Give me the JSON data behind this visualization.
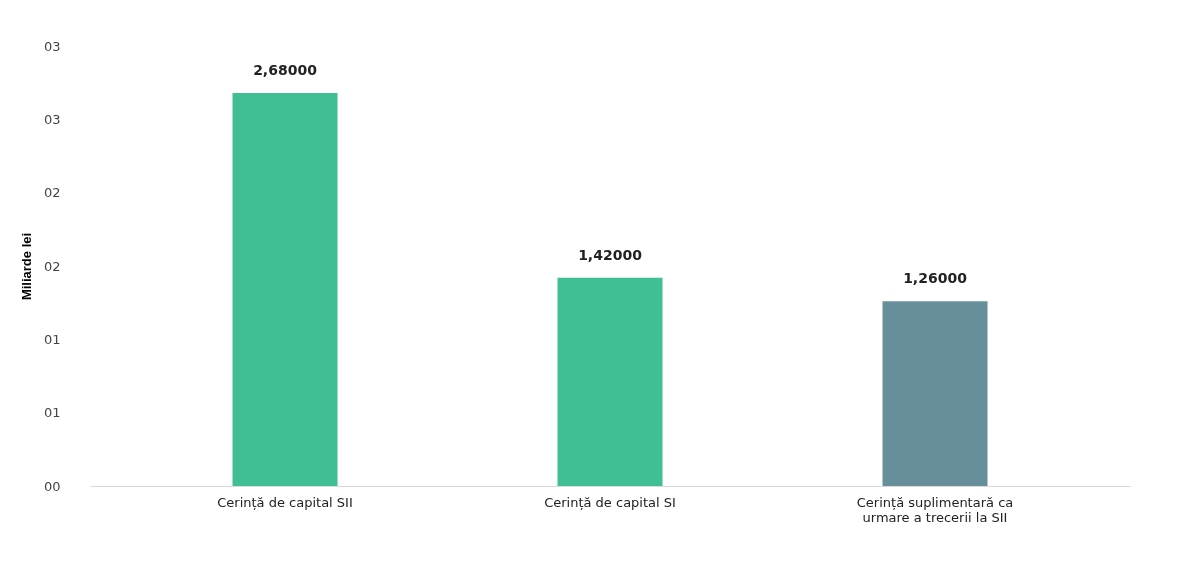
{
  "chart_data": {
    "type": "bar",
    "ylabel": "Miliarde lei",
    "categories": [
      "Cerință de capital  SII",
      "Cerință de capital  SI",
      "Cerință suplimentară  ca urmare a trecerii la SII"
    ],
    "values": [
      2.68,
      1.42,
      1.26
    ],
    "colors": [
      "#40bf95",
      "#40bf95",
      "#668f9b"
    ],
    "value_labels": [
      "2,68000",
      "1,42000",
      "1,26000"
    ],
    "ylim": [
      0,
      3.0
    ],
    "yticks": [
      {
        "value": 0,
        "label": "00"
      },
      {
        "value": 0.5,
        "label": "01"
      },
      {
        "value": 1.0,
        "label": "01"
      },
      {
        "value": 1.5,
        "label": "02"
      },
      {
        "value": 2.0,
        "label": "02"
      },
      {
        "value": 2.5,
        "label": "03"
      },
      {
        "value": 3.0,
        "label": "03"
      }
    ],
    "grid": false
  }
}
